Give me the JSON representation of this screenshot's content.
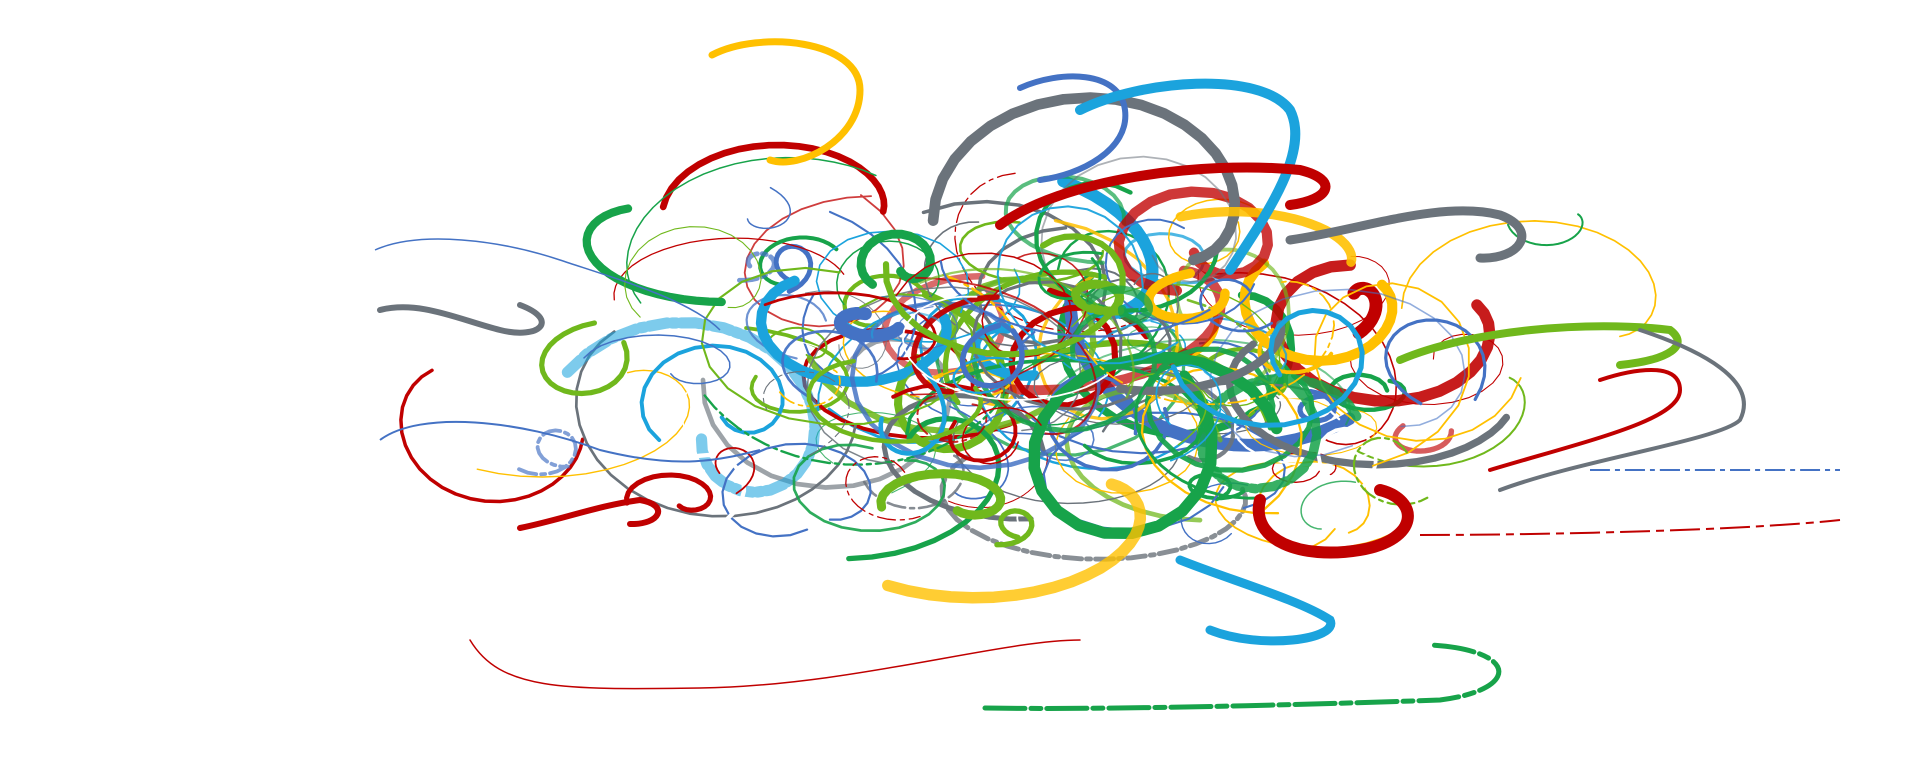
{
  "artwork": {
    "palette": {
      "red": "#c00000",
      "yellow": "#ffc000",
      "blue": "#4472c4",
      "sky": "#1ba3dd",
      "green": "#17a34a",
      "lime": "#70b81c",
      "gray": "#6b737b",
      "white": "#ffffff"
    },
    "stroke_count": 180,
    "seed": 7,
    "background": "#ffffff"
  }
}
